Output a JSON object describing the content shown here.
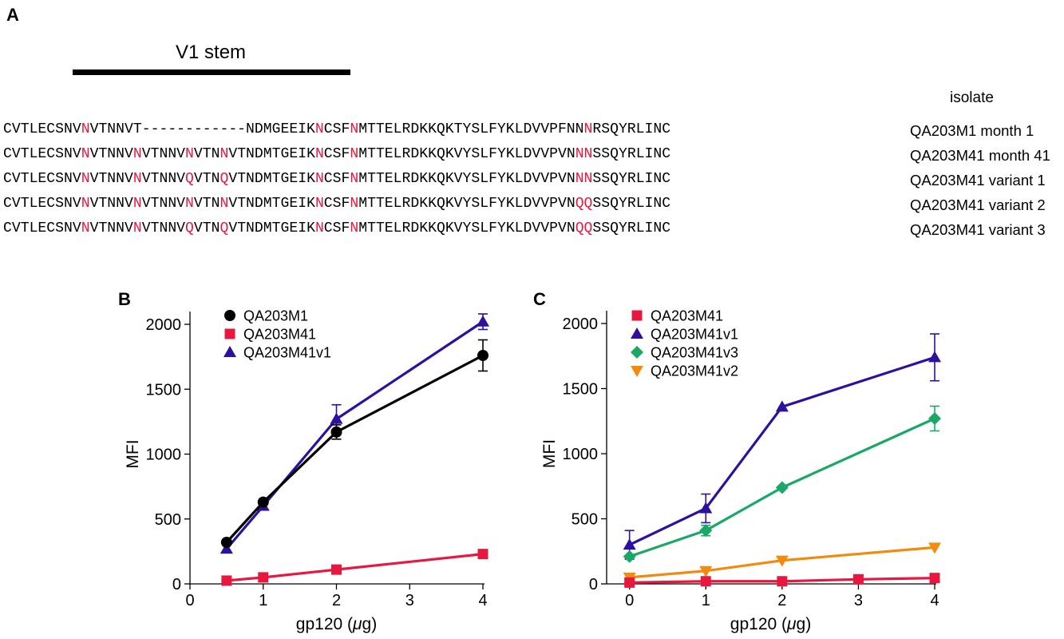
{
  "panel_a": {
    "letter": "A",
    "stem_label": "V1 stem",
    "isolate_header": "isolate",
    "highlight_color": "#e8173f",
    "sequences": [
      {
        "seq": "CVTLECSNVNVTNNVT------------NDMGEEIKNCSFNMTTELRDKKQKTYSLFYKLDVVPFNNNRSQYRLINC",
        "label": "QA203M1 month 1",
        "highlights": [
          9,
          36,
          40,
          67
        ]
      },
      {
        "seq": "CVTLECSNVNVTNNVNVTNNVNVTNNVTNDMTGEIKNCSFNMTTELRDKKQKVYSLFYKLDVVPVNNNSSQYRLINC",
        "label": "QA203M41 month 41",
        "highlights": [
          9,
          15,
          21,
          25,
          36,
          40,
          66,
          67
        ]
      },
      {
        "seq": "CVTLECSNVNVTNNVNVTNNVQVTNQVTNDMTGEIKNCSFNMTTELRDKKQKVYSLFYKLDVVPVNNNSSQYRLINC",
        "label": "QA203M41 variant 1",
        "highlights": [
          9,
          15,
          21,
          25,
          36,
          40,
          66,
          67
        ]
      },
      {
        "seq": "CVTLECSNVNVTNNVNVTNNVNVTNNVTNDMTGEIKNCSFNMTTELRDKKQKVYSLFYKLDVVPVNQQSSQYRLINC",
        "label": "QA203M41 variant 2",
        "highlights": [
          9,
          15,
          21,
          25,
          36,
          40,
          66,
          67
        ]
      },
      {
        "seq": "CVTLECSNVNVTNNVNVTNNVQVTNQVTNDMTGEIKNCSFNMTTELRDKKQKVYSLFYKLDVVPVNQQSSQYRLINC",
        "label": "QA203M41 variant 3",
        "highlights": [
          9,
          15,
          21,
          25,
          36,
          40,
          66,
          67
        ]
      }
    ]
  },
  "chart_data": [
    {
      "panel": "B",
      "type": "line",
      "xlabel_main": "gp120 (",
      "xlabel_mu": "μ",
      "xlabel_tail": "g)",
      "ylabel": "MFI",
      "xlim": [
        0,
        4
      ],
      "ylim": [
        0,
        2000
      ],
      "xticks": [
        0,
        1,
        2,
        3,
        4
      ],
      "yticks": [
        0,
        500,
        1000,
        1500,
        2000
      ],
      "legend_position": "top-left",
      "series": [
        {
          "name": "QA203M41v1",
          "color": "#2e0fa0",
          "marker": "triangle-up",
          "x": [
            0.5,
            1,
            2,
            4
          ],
          "y": [
            270,
            600,
            1270,
            2020
          ],
          "err": [
            0,
            0,
            110,
            60
          ]
        },
        {
          "name": "QA203M1",
          "color": "#000000",
          "marker": "circle",
          "x": [
            0.5,
            1,
            2,
            4
          ],
          "y": [
            320,
            630,
            1170,
            1760
          ],
          "err": [
            0,
            0,
            55,
            120
          ]
        },
        {
          "name": "QA203M41",
          "color": "#e8173f",
          "marker": "square",
          "x": [
            0.5,
            1,
            2,
            4
          ],
          "y": [
            25,
            50,
            110,
            230
          ],
          "err": [
            0,
            0,
            0,
            0
          ]
        }
      ],
      "legend_order": [
        "QA203M1",
        "QA203M41",
        "QA203M41v1"
      ]
    },
    {
      "panel": "C",
      "type": "line",
      "xlabel_main": "gp120 (",
      "xlabel_mu": "μ",
      "xlabel_tail": "g)",
      "ylabel": "MFI",
      "xlim": [
        -0.3,
        4
      ],
      "ylim": [
        0,
        2000
      ],
      "xticks": [
        0,
        1,
        2,
        3,
        4
      ],
      "yticks": [
        0,
        500,
        1000,
        1500,
        2000
      ],
      "legend_position": "top-left",
      "series": [
        {
          "name": "QA203M41v1",
          "color": "#2e0fa0",
          "marker": "triangle-up",
          "x": [
            0,
            1,
            2,
            4
          ],
          "y": [
            300,
            580,
            1360,
            1740
          ],
          "err": [
            110,
            110,
            0,
            180
          ]
        },
        {
          "name": "QA203M41v3",
          "color": "#1aa866",
          "marker": "diamond",
          "x": [
            0,
            1,
            2,
            4
          ],
          "y": [
            210,
            410,
            740,
            1270
          ],
          "err": [
            0,
            40,
            0,
            95
          ]
        },
        {
          "name": "QA203M41v2",
          "color": "#f28a0e",
          "marker": "triangle-down",
          "x": [
            0,
            1,
            2,
            4
          ],
          "y": [
            50,
            100,
            180,
            280
          ],
          "err": [
            0,
            0,
            0,
            0
          ]
        },
        {
          "name": "QA203M41",
          "color": "#e8173f",
          "marker": "square",
          "x": [
            0,
            1,
            2,
            3,
            4
          ],
          "y": [
            10,
            20,
            20,
            35,
            45
          ],
          "err": [
            0,
            0,
            0,
            0,
            0
          ]
        }
      ],
      "legend_order": [
        "QA203M41",
        "QA203M41v1",
        "QA203M41v3",
        "QA203M41v2"
      ]
    }
  ]
}
